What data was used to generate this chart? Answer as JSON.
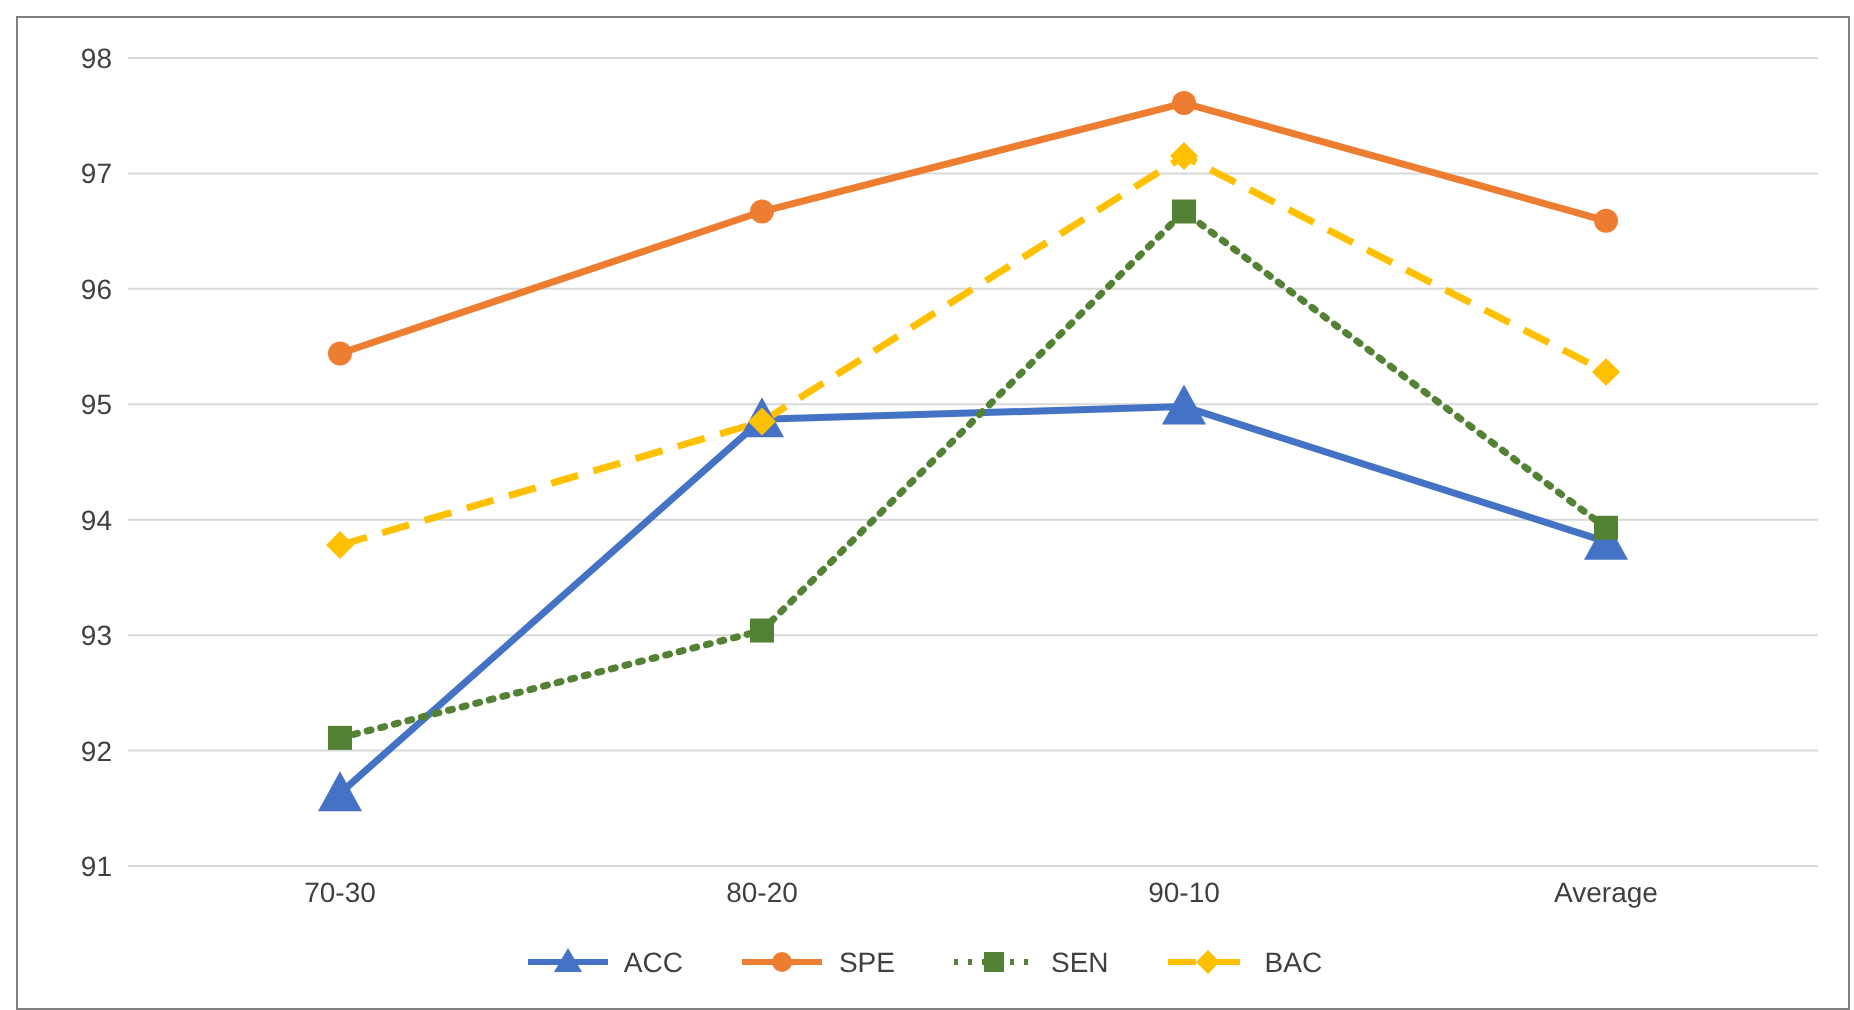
{
  "chart_data": {
    "type": "line",
    "categories": [
      "70-30",
      "80-20",
      "90-10",
      "Average"
    ],
    "ylim": [
      91,
      98
    ],
    "yticks": [
      91,
      92,
      93,
      94,
      95,
      96,
      97,
      98
    ],
    "grid": "y",
    "legend": "bottom",
    "series": [
      {
        "name": "ACC",
        "color": "#4472c4",
        "marker": "triangle",
        "line_style": "solid",
        "values": [
          91.63,
          94.87,
          94.98,
          93.81
        ]
      },
      {
        "name": "SPE",
        "color": "#ed7d31",
        "marker": "circle",
        "line_style": "solid",
        "values": [
          95.44,
          96.67,
          97.61,
          96.59
        ]
      },
      {
        "name": "SEN",
        "color": "#548235",
        "marker": "square",
        "line_style": "dotted",
        "values": [
          92.11,
          93.04,
          96.67,
          93.93
        ]
      },
      {
        "name": "BAC",
        "color": "#ffc000",
        "marker": "diamond",
        "line_style": "dashed",
        "values": [
          93.78,
          94.85,
          97.15,
          95.28
        ]
      }
    ]
  }
}
